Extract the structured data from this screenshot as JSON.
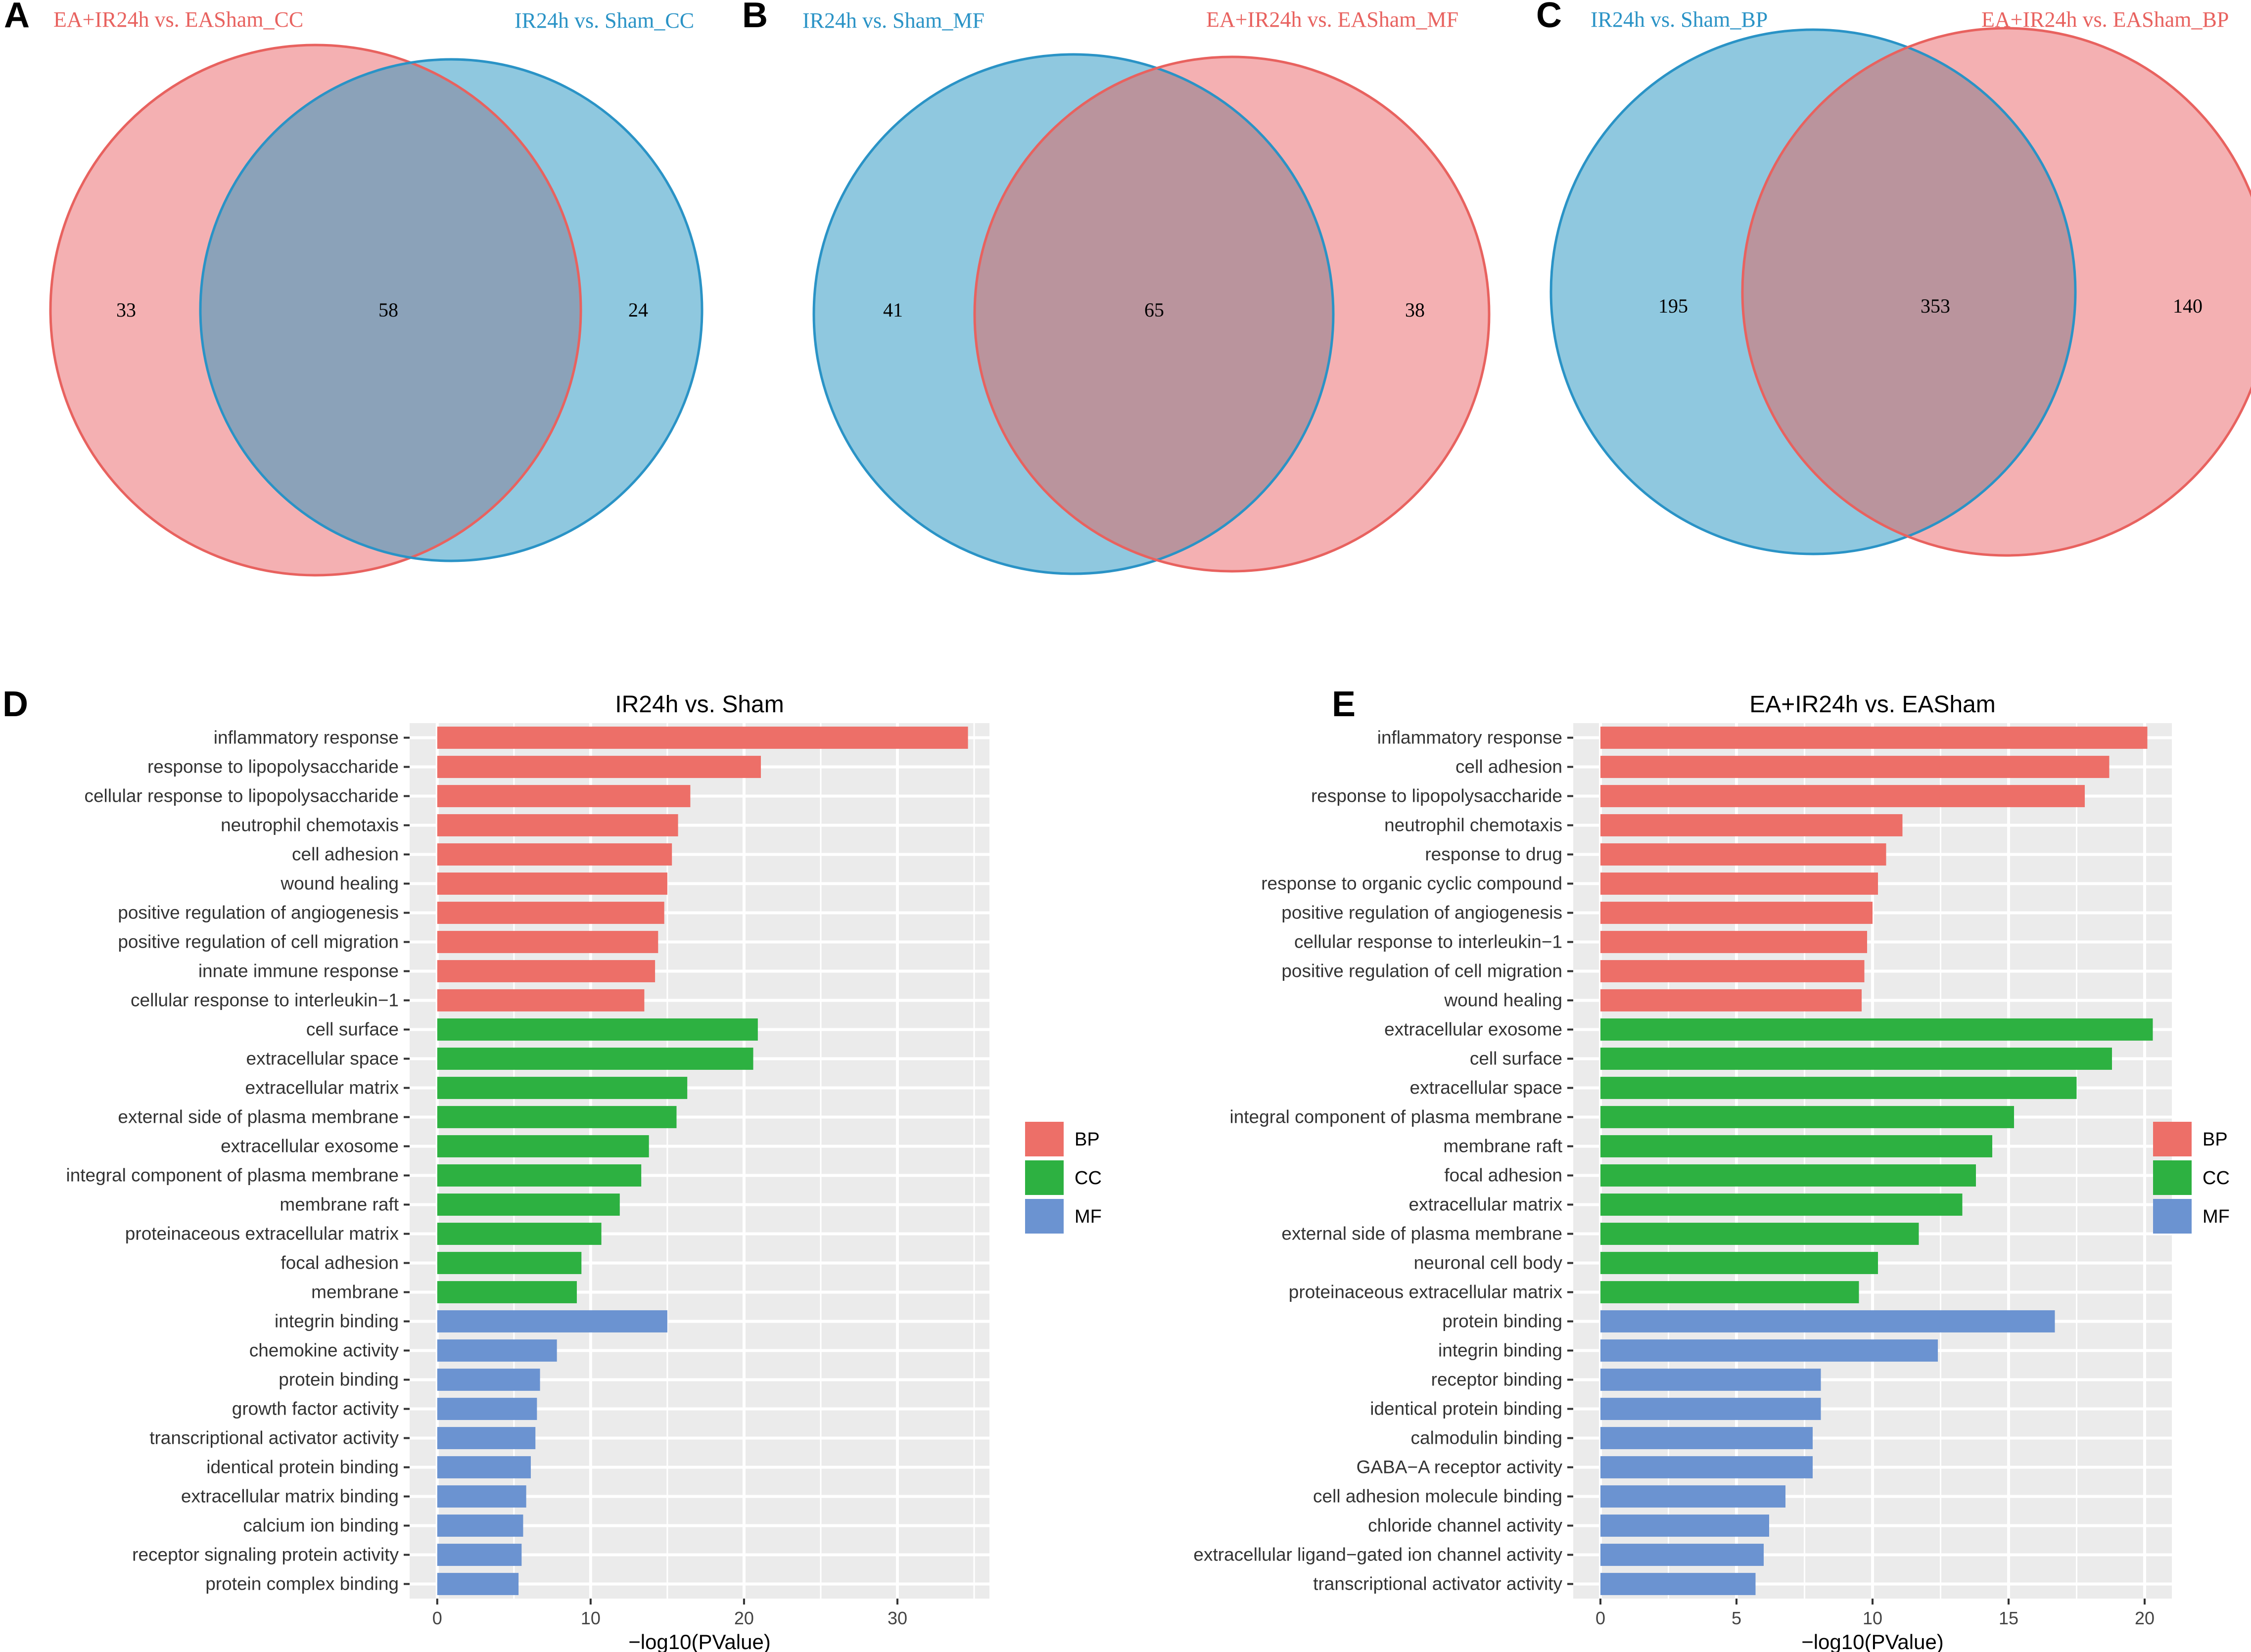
{
  "colors": {
    "red_fill": "#F4B0B2",
    "red_stroke": "#E8625F",
    "blue_fill": "#8FC8DF",
    "blue_stroke": "#2A93C6",
    "bp": "#ED6F68",
    "cc": "#2DB141",
    "mf": "#6B93D1",
    "panel_bg": "#EBEBEB",
    "grid": "#FFFFFF"
  },
  "venn": [
    {
      "letter": "A",
      "sets": [
        {
          "label": "EA+IR24h vs. EASham_CC",
          "color": "red",
          "only": "33"
        },
        {
          "label": "IR24h vs. Sham_CC",
          "color": "blue",
          "only": "24"
        }
      ],
      "overlap": "58",
      "overlap_color": "#8BA2B9"
    },
    {
      "letter": "B",
      "sets": [
        {
          "label": "IR24h vs. Sham_MF",
          "color": "blue",
          "only": "41"
        },
        {
          "label": "EA+IR24h vs. EASham_MF",
          "color": "red",
          "only": "38"
        }
      ],
      "overlap": "65",
      "overlap_color": "#BA949D"
    },
    {
      "letter": "C",
      "sets": [
        {
          "label": "IR24h vs. Sham_BP",
          "color": "blue",
          "only": "195"
        },
        {
          "label": "EA+IR24h vs. EASham_BP",
          "color": "red",
          "only": "140"
        }
      ],
      "overlap": "353",
      "overlap_color": "#BA949D"
    }
  ],
  "chart_data": [
    {
      "letter": "D",
      "type": "bar",
      "orientation": "horizontal",
      "title": "IR24h vs. Sham",
      "xlabel": "−log10(PValue)",
      "xlim": [
        -1.8,
        36
      ],
      "xticks": [
        0,
        10,
        20,
        30
      ],
      "categories": [
        "inflammatory response",
        "response to lipopolysaccharide",
        "cellular response to lipopolysaccharide",
        "neutrophil chemotaxis",
        "cell adhesion",
        "wound healing",
        "positive regulation of angiogenesis",
        "positive regulation of cell migration",
        "innate immune response",
        "cellular response to interleukin−1",
        "cell surface",
        "extracellular space",
        "extracellular matrix",
        "external side of plasma membrane",
        "extracellular exosome",
        "integral component of plasma membrane",
        "membrane raft",
        "proteinaceous extracellular matrix",
        "focal adhesion",
        "membrane",
        "integrin binding",
        "chemokine activity",
        "protein binding",
        "growth factor activity",
        "transcriptional activator activity",
        "identical protein binding",
        "extracellular matrix binding",
        "calcium ion binding",
        "receptor signaling protein activity",
        "protein complex binding"
      ],
      "values": [
        34.6,
        21.1,
        16.5,
        15.7,
        15.3,
        15.0,
        14.8,
        14.4,
        14.2,
        13.5,
        20.9,
        20.6,
        16.3,
        15.6,
        13.8,
        13.3,
        11.9,
        10.7,
        9.4,
        9.1,
        15.0,
        7.8,
        6.7,
        6.5,
        6.4,
        6.1,
        5.8,
        5.6,
        5.5,
        5.3
      ],
      "groups": [
        "BP",
        "BP",
        "BP",
        "BP",
        "BP",
        "BP",
        "BP",
        "BP",
        "BP",
        "BP",
        "CC",
        "CC",
        "CC",
        "CC",
        "CC",
        "CC",
        "CC",
        "CC",
        "CC",
        "CC",
        "MF",
        "MF",
        "MF",
        "MF",
        "MF",
        "MF",
        "MF",
        "MF",
        "MF",
        "MF"
      ],
      "legend": [
        "BP",
        "CC",
        "MF"
      ]
    },
    {
      "letter": "E",
      "type": "bar",
      "orientation": "horizontal",
      "title": "EA+IR24h vs. EASham",
      "xlabel": "−log10(PValue)",
      "xlim": [
        -1.0,
        21.0
      ],
      "xticks": [
        0,
        5,
        10,
        15,
        20
      ],
      "categories": [
        "inflammatory response",
        "cell adhesion",
        "response to lipopolysaccharide",
        "neutrophil chemotaxis",
        "response to drug",
        "response to organic cyclic compound",
        "positive regulation of angiogenesis",
        "cellular response to interleukin−1",
        "positive regulation of cell migration",
        "wound healing",
        "extracellular exosome",
        "cell surface",
        "extracellular space",
        "integral component of plasma membrane",
        "membrane raft",
        "focal adhesion",
        "extracellular matrix",
        "external side of plasma membrane",
        "neuronal cell body",
        "proteinaceous extracellular matrix",
        "protein binding",
        "integrin binding",
        "receptor binding",
        "identical protein binding",
        "calmodulin binding",
        "GABA−A receptor activity",
        "cell adhesion molecule binding",
        "chloride channel activity",
        "extracellular ligand−gated ion channel activity",
        "transcriptional activator activity"
      ],
      "values": [
        20.1,
        18.7,
        17.8,
        11.1,
        10.5,
        10.2,
        10.0,
        9.8,
        9.7,
        9.6,
        20.3,
        18.8,
        17.5,
        15.2,
        14.4,
        13.8,
        13.3,
        11.7,
        10.2,
        9.5,
        16.7,
        12.4,
        8.1,
        8.1,
        7.8,
        7.8,
        6.8,
        6.2,
        6.0,
        5.7
      ],
      "groups": [
        "BP",
        "BP",
        "BP",
        "BP",
        "BP",
        "BP",
        "BP",
        "BP",
        "BP",
        "BP",
        "CC",
        "CC",
        "CC",
        "CC",
        "CC",
        "CC",
        "CC",
        "CC",
        "CC",
        "CC",
        "MF",
        "MF",
        "MF",
        "MF",
        "MF",
        "MF",
        "MF",
        "MF",
        "MF",
        "MF"
      ],
      "legend": [
        "BP",
        "CC",
        "MF"
      ]
    }
  ]
}
